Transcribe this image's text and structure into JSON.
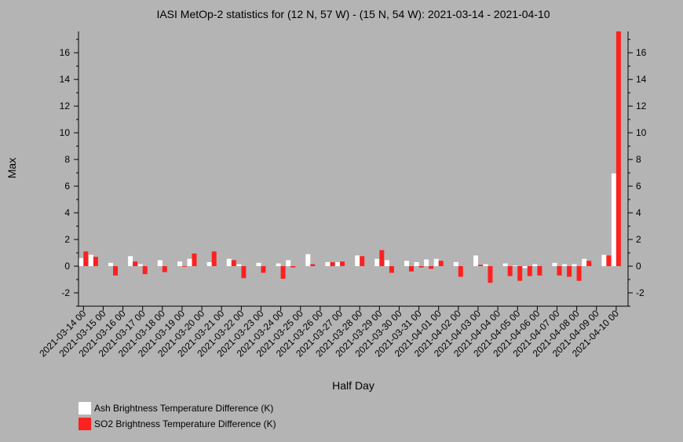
{
  "chart_data": {
    "type": "bar",
    "title": "IASI MetOp-2 statistics for (12 N, 57 W) - (15 N, 54 W): 2021-03-14 - 2021-04-10",
    "xlabel": "Half Day",
    "ylabel": "Max",
    "ylim": [
      -3,
      17.6
    ],
    "yticks": [
      -2,
      0,
      2,
      4,
      6,
      8,
      10,
      12,
      14,
      16
    ],
    "xlim": [
      -0.25,
      27.6
    ],
    "grid": false,
    "legend_position": "bottom-left",
    "x_tick_labels": [
      "2021-03-14 00",
      "2021-03-15 00",
      "2021-03-16 00",
      "2021-03-17 00",
      "2021-03-18 00",
      "2021-03-19 00",
      "2021-03-20 00",
      "2021-03-21 00",
      "2021-03-22 00",
      "2021-03-23 00",
      "2021-03-24 00",
      "2021-03-25 00",
      "2021-03-26 00",
      "2021-03-27 00",
      "2021-03-28 00",
      "2021-03-29 00",
      "2021-03-30 00",
      "2021-03-31 00",
      "2021-04-01 00",
      "2021-04-02 00",
      "2021-04-03 00",
      "2021-04-04 00",
      "2021-04-05 00",
      "2021-04-06 00",
      "2021-04-07 00",
      "2021-04-08 00",
      "2021-04-09 00",
      "2021-04-10 00"
    ],
    "series": [
      {
        "name": "Ash Brightness Temperature Difference (K)",
        "color": "#ffffff",
        "points": [
          [
            0.0,
            0.6
          ],
          [
            0.5,
            0.85
          ],
          [
            1.5,
            0.25
          ],
          [
            2.5,
            0.75
          ],
          [
            3.0,
            0.15
          ],
          [
            4.0,
            0.45
          ],
          [
            5.0,
            0.35
          ],
          [
            5.5,
            0.55
          ],
          [
            6.5,
            0.3
          ],
          [
            7.5,
            0.55
          ],
          [
            8.0,
            0.15
          ],
          [
            9.0,
            0.25
          ],
          [
            10.0,
            0.2
          ],
          [
            10.5,
            0.45
          ],
          [
            11.5,
            0.9
          ],
          [
            12.5,
            0.3
          ],
          [
            13.0,
            0.3
          ],
          [
            14.0,
            0.8
          ],
          [
            15.0,
            0.55
          ],
          [
            15.5,
            0.45
          ],
          [
            16.5,
            0.4
          ],
          [
            17.0,
            0.3
          ],
          [
            17.5,
            0.5
          ],
          [
            18.0,
            0.55
          ],
          [
            19.0,
            0.3
          ],
          [
            20.0,
            0.8
          ],
          [
            20.5,
            0.15
          ],
          [
            21.5,
            0.2
          ],
          [
            22.0,
            0.05
          ],
          [
            22.5,
            -0.15
          ],
          [
            23.0,
            0.15
          ],
          [
            24.0,
            0.25
          ],
          [
            24.5,
            0.15
          ],
          [
            25.0,
            0.15
          ],
          [
            25.5,
            0.55
          ],
          [
            26.5,
            0.85
          ],
          [
            27.0,
            6.95
          ]
        ]
      },
      {
        "name": "SO2 Brightness Temperature Difference (K)",
        "color": "#ff2020",
        "points": [
          [
            0.0,
            1.1
          ],
          [
            0.5,
            0.7
          ],
          [
            1.5,
            -0.7
          ],
          [
            2.5,
            0.35
          ],
          [
            3.0,
            -0.6
          ],
          [
            4.0,
            -0.45
          ],
          [
            5.0,
            0.0
          ],
          [
            5.5,
            0.95
          ],
          [
            6.5,
            1.1
          ],
          [
            7.5,
            0.45
          ],
          [
            8.0,
            -0.9
          ],
          [
            9.0,
            -0.5
          ],
          [
            10.0,
            -0.95
          ],
          [
            10.5,
            -0.1
          ],
          [
            11.5,
            0.15
          ],
          [
            12.5,
            0.3
          ],
          [
            13.0,
            0.35
          ],
          [
            14.0,
            0.75
          ],
          [
            15.0,
            1.2
          ],
          [
            15.5,
            -0.5
          ],
          [
            16.5,
            -0.4
          ],
          [
            17.0,
            -0.1
          ],
          [
            17.5,
            -0.2
          ],
          [
            18.0,
            0.4
          ],
          [
            19.0,
            -0.8
          ],
          [
            20.0,
            0.1
          ],
          [
            20.5,
            -1.25
          ],
          [
            21.5,
            -0.75
          ],
          [
            22.0,
            -1.1
          ],
          [
            22.5,
            -0.75
          ],
          [
            23.0,
            -0.7
          ],
          [
            24.0,
            -0.7
          ],
          [
            24.5,
            -0.8
          ],
          [
            25.0,
            -1.1
          ],
          [
            25.5,
            0.4
          ],
          [
            26.5,
            0.8
          ],
          [
            27.0,
            17.6
          ]
        ]
      }
    ]
  }
}
